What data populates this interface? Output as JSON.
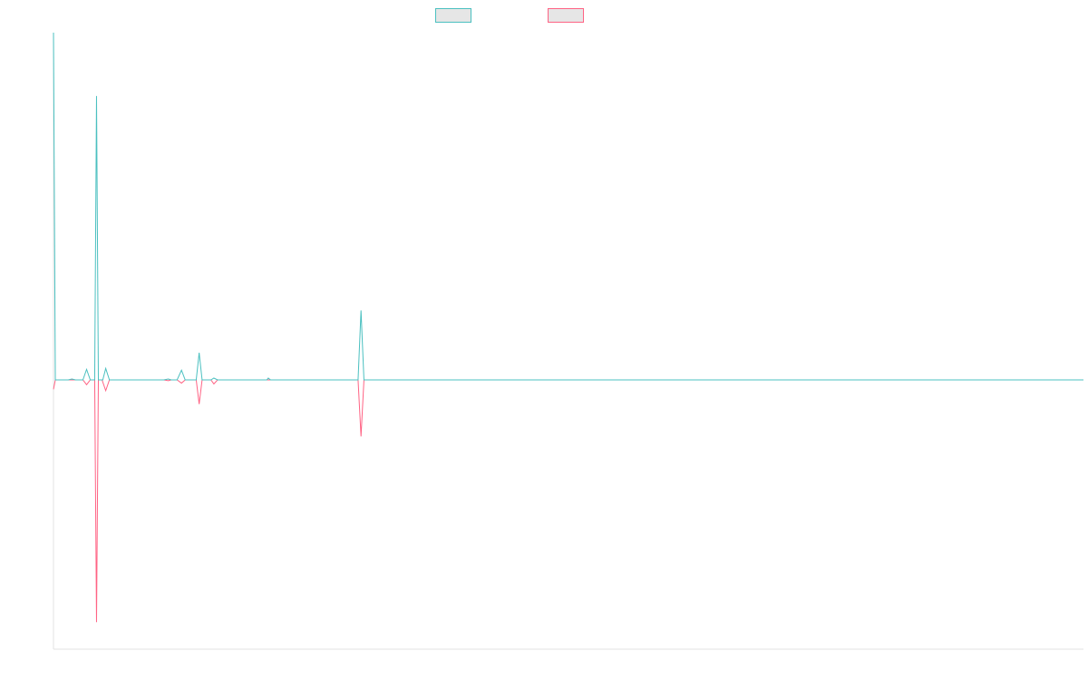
{
  "chart_data": {
    "type": "line",
    "title": "",
    "xlabel": "",
    "ylabel": "",
    "grid": false,
    "legend_placement": "top-center",
    "x_range": [
      0,
      140
    ],
    "ylim": [
      -1,
      1.15
    ],
    "series": [
      {
        "name": "",
        "color": "#4bc0c0",
        "points": [
          [
            0,
            1.15
          ],
          [
            0.25,
            0
          ],
          [
            2,
            0
          ],
          [
            2.5,
            0.003
          ],
          [
            3,
            0
          ],
          [
            4,
            0
          ],
          [
            4.5,
            0.035
          ],
          [
            5,
            0
          ],
          [
            5.6,
            0
          ],
          [
            5.85,
            0.94
          ],
          [
            6.1,
            0
          ],
          [
            6.7,
            0
          ],
          [
            7.1,
            0.038
          ],
          [
            7.6,
            0
          ],
          [
            15,
            0
          ],
          [
            15.6,
            0.003
          ],
          [
            16,
            0
          ],
          [
            16.8,
            0
          ],
          [
            17.4,
            0.032
          ],
          [
            17.9,
            0
          ],
          [
            19.4,
            0
          ],
          [
            19.8,
            0.09
          ],
          [
            20.2,
            0
          ],
          [
            21.4,
            0
          ],
          [
            21.8,
            0.006
          ],
          [
            22.3,
            0
          ],
          [
            29,
            0
          ],
          [
            29.2,
            0.006
          ],
          [
            29.5,
            0
          ],
          [
            41.4,
            0
          ],
          [
            41.8,
            0.23
          ],
          [
            42.2,
            0
          ],
          [
            140,
            0
          ]
        ]
      },
      {
        "name": "",
        "color": "#ff6384",
        "points": [
          [
            0,
            -0.035
          ],
          [
            0.25,
            0
          ],
          [
            2,
            0
          ],
          [
            4,
            0
          ],
          [
            4.5,
            -0.018
          ],
          [
            5,
            0
          ],
          [
            5.6,
            0
          ],
          [
            5.85,
            -0.9
          ],
          [
            6.1,
            0
          ],
          [
            6.6,
            0
          ],
          [
            7.1,
            -0.04
          ],
          [
            7.6,
            0
          ],
          [
            15,
            0
          ],
          [
            15.6,
            -0.003
          ],
          [
            16,
            0
          ],
          [
            16.8,
            0
          ],
          [
            17.4,
            -0.012
          ],
          [
            17.9,
            0
          ],
          [
            19.4,
            0
          ],
          [
            19.8,
            -0.09
          ],
          [
            20.2,
            0
          ],
          [
            21.4,
            0
          ],
          [
            21.8,
            -0.015
          ],
          [
            22.3,
            0
          ],
          [
            41.4,
            0
          ],
          [
            41.8,
            -0.21
          ],
          [
            42.2,
            0
          ],
          [
            140,
            0
          ]
        ]
      }
    ]
  }
}
